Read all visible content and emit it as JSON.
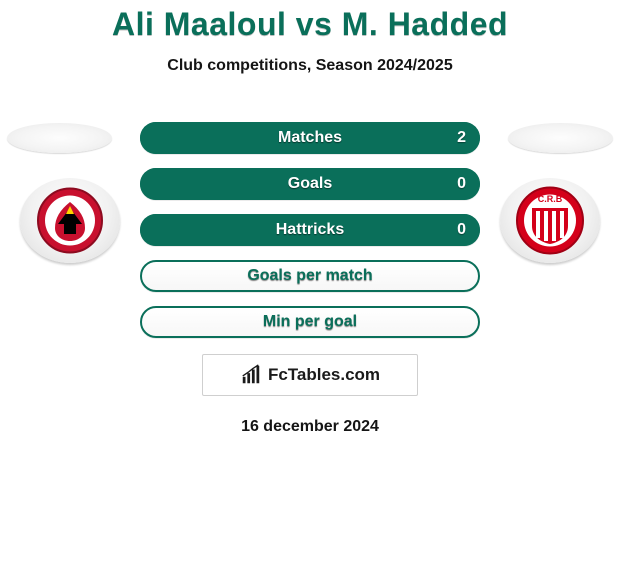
{
  "header": {
    "title": "Ali Maaloul vs M. Hadded",
    "subtitle": "Club competitions, Season 2024/2025",
    "title_color": "#0a6f5a"
  },
  "players": {
    "left": {
      "name": "Ali Maaloul"
    },
    "right": {
      "name": "M. Hadded"
    }
  },
  "clubs": {
    "left": {
      "name": "Al Ahly",
      "ring_color": "#ffffff",
      "crest_primary": "#c8102e",
      "crest_secondary": "#000000"
    },
    "right": {
      "name": "CR Belouizdad",
      "initials": "C.R.B",
      "ring_color": "#ffffff",
      "crest_primary": "#d4001a",
      "stripe_color": "#ffffff"
    }
  },
  "stats": {
    "bar_border_color": "#0a6f5a",
    "fill_color": "#0a6f5a",
    "empty_bg": "#ffffff",
    "label_color": "#ffffff",
    "value_right_on_fill": "#ffffff",
    "value_right_on_empty": "#0a6f5a",
    "label_fontsize": 16,
    "rows": [
      {
        "label": "Matches",
        "left": "",
        "right": "2",
        "fill_pct": 100
      },
      {
        "label": "Goals",
        "left": "",
        "right": "0",
        "fill_pct": 100
      },
      {
        "label": "Hattricks",
        "left": "",
        "right": "0",
        "fill_pct": 100
      },
      {
        "label": "Goals per match",
        "left": "",
        "right": "",
        "fill_pct": 0
      },
      {
        "label": "Min per goal",
        "left": "",
        "right": "",
        "fill_pct": 0
      }
    ]
  },
  "footer": {
    "brand": "FcTables.com",
    "date": "16 december 2024"
  }
}
